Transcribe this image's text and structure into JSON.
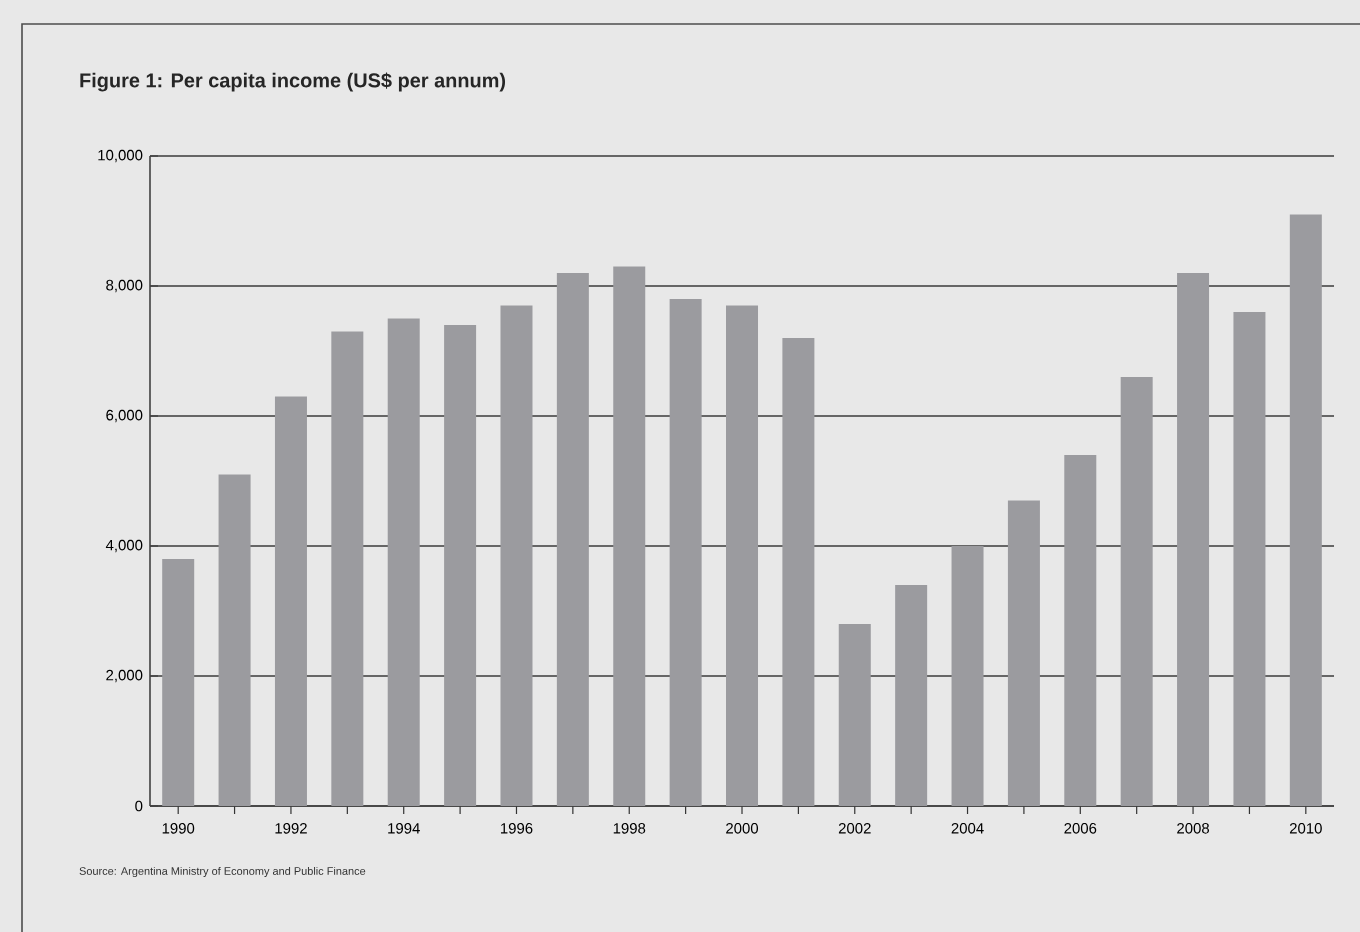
{
  "chart_data": {
    "type": "bar",
    "title": "Figure 1: Per capita income (US$ per annum)",
    "categories": [
      "1990",
      null,
      "1992",
      null,
      "1994",
      null,
      "1996",
      null,
      "1998",
      null,
      "2000",
      null,
      "2002",
      null,
      "2004",
      null,
      "2006",
      null,
      "2008",
      null,
      "2010"
    ],
    "values": [
      3800,
      5100,
      6300,
      7300,
      7500,
      7400,
      7700,
      8200,
      8300,
      7800,
      7700,
      7200,
      2800,
      3400,
      4000,
      4700,
      5400,
      6600,
      8200,
      7600,
      9100
    ],
    "color": "#9b9b9f",
    "ylim": [
      0,
      10000
    ],
    "yticks": [
      0,
      {
        "value": 2000,
        "label": "2,000"
      },
      {
        "value": 4000,
        "label": "4,000"
      },
      {
        "value": 6000,
        "label": "6,000"
      },
      {
        "value": 8000,
        "label": "8,000"
      },
      {
        "value": 10000,
        "label": "10,000"
      }
    ],
    "grid": "y",
    "annotations": [
      "Source: Argentina Ministry of Economy and Public Finance"
    ]
  }
}
